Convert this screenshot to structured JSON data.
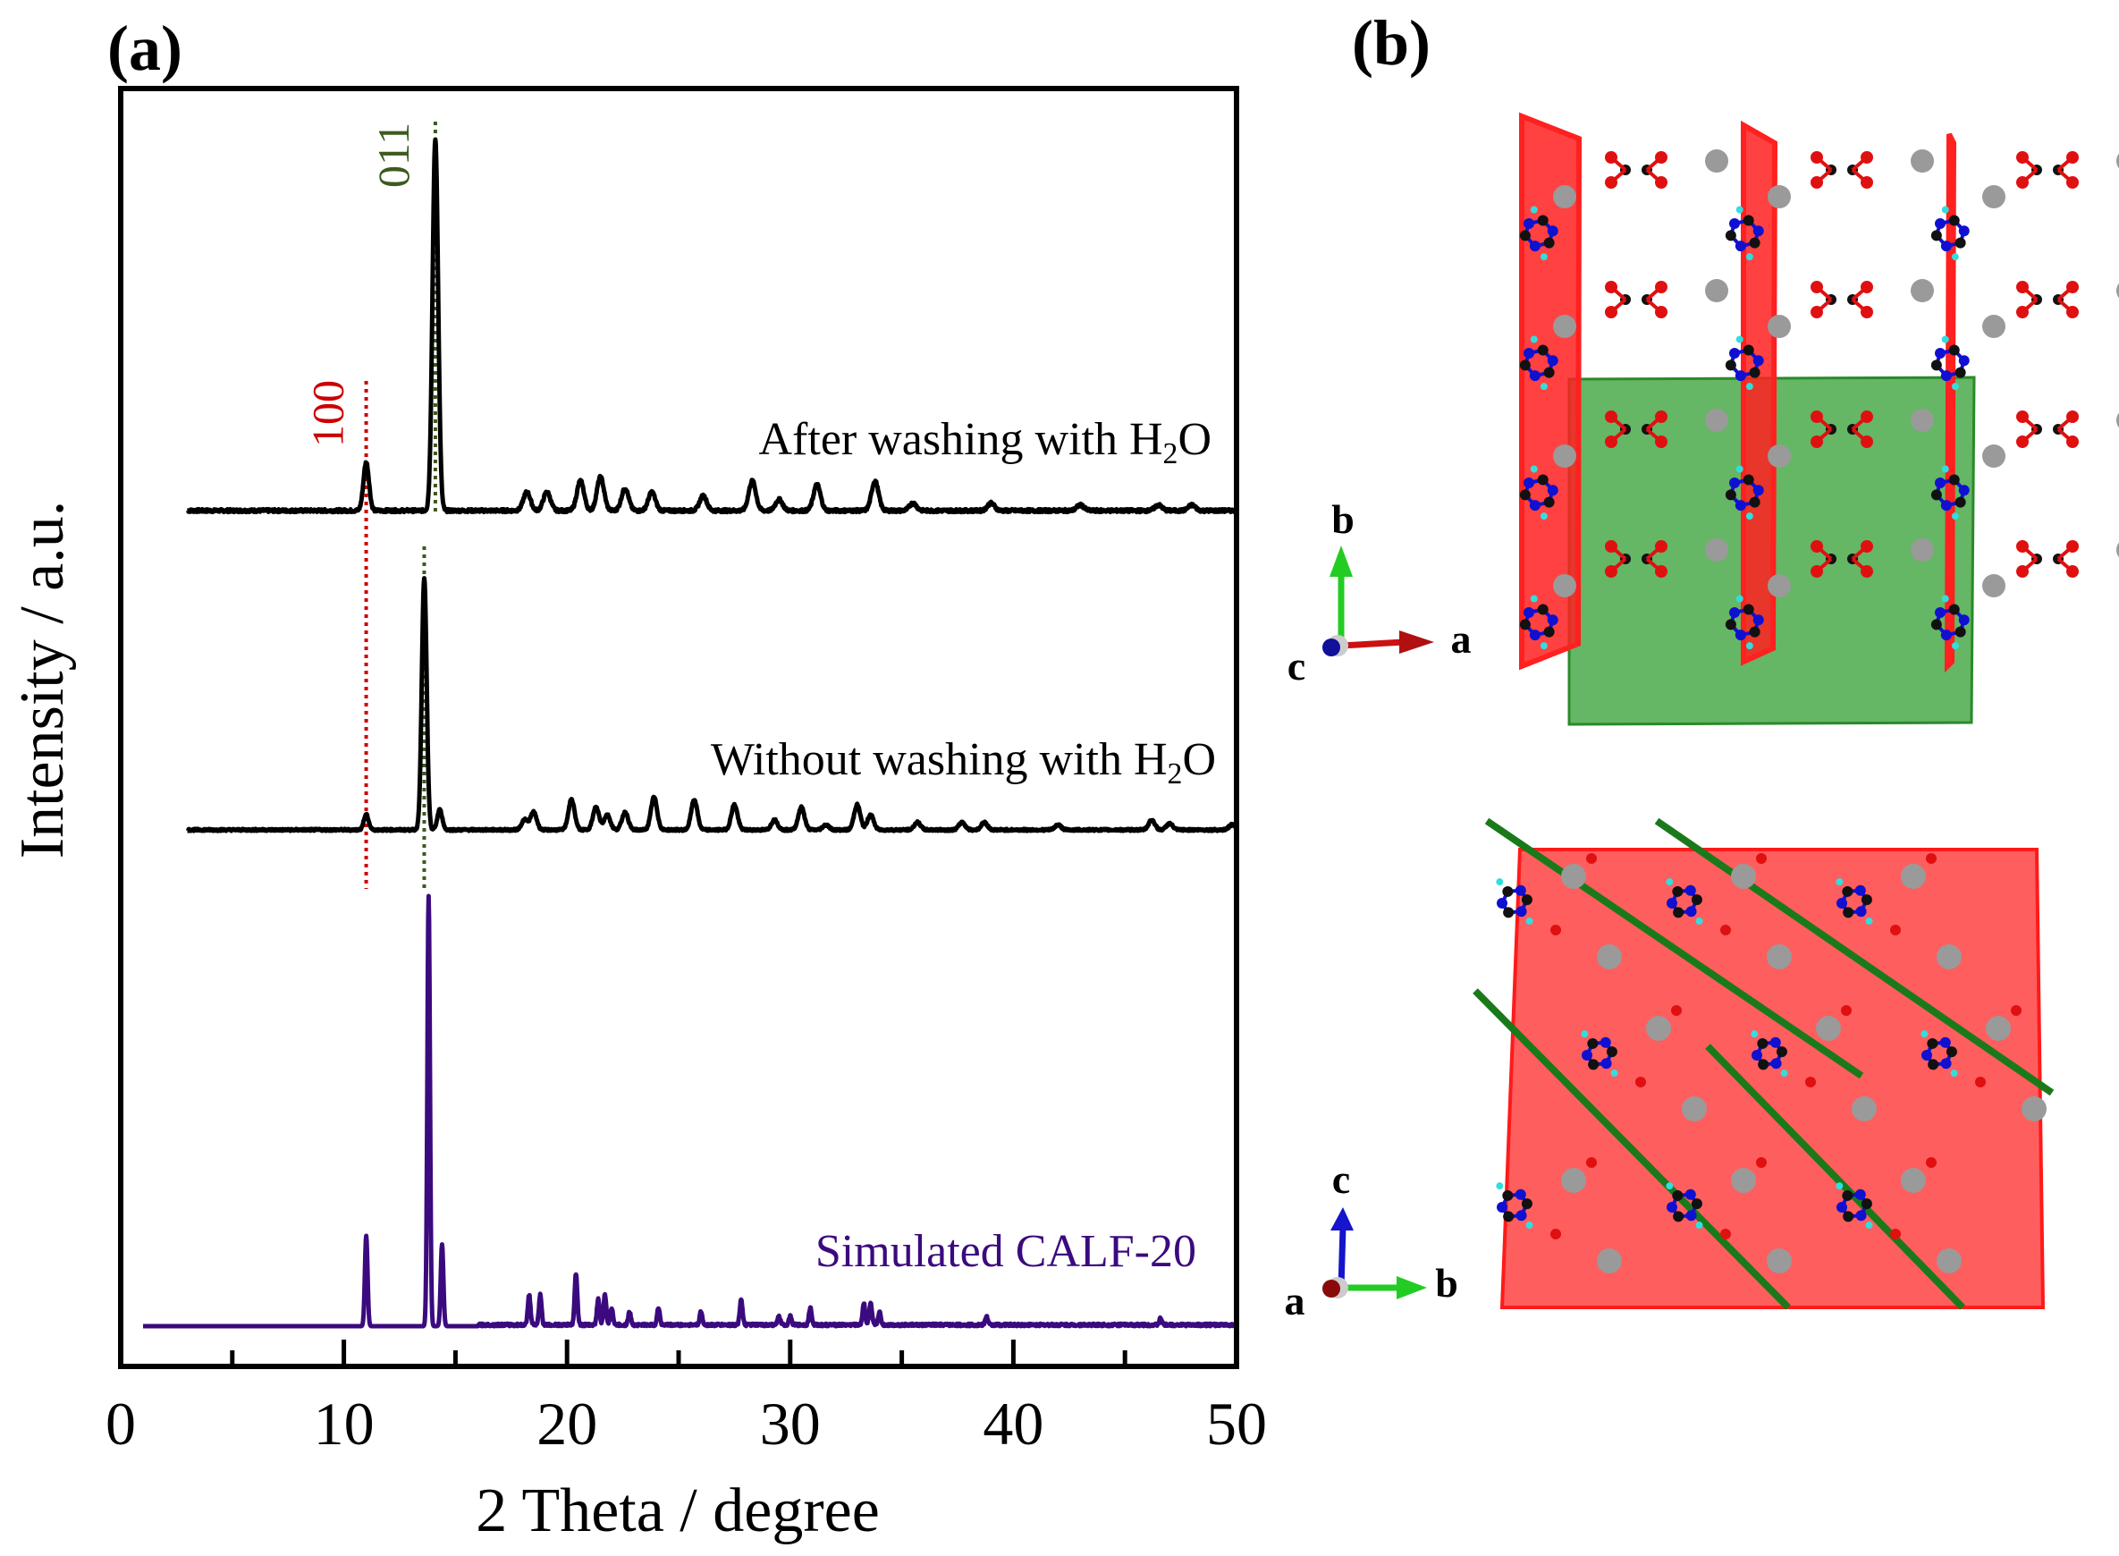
{
  "panel_labels": {
    "a": "(a)",
    "b": "(b)"
  },
  "chart_data": {
    "type": "line",
    "title": "",
    "xlabel": "2 Theta / degree",
    "ylabel": "Intensity / a.u.",
    "xlim": [
      0,
      50
    ],
    "xticks": [
      0,
      10,
      20,
      30,
      40,
      50
    ],
    "xticks_minor": [
      5,
      15,
      25,
      35,
      45
    ],
    "yticks": [],
    "grid": false,
    "legend": "none (inline labels at right of each trace)",
    "series": [
      {
        "name": "After washing with H2O",
        "label_main": "After washing with H",
        "label_sub": "2",
        "label_end": "O",
        "color": "#000000",
        "x_start": 3,
        "offset": 2.0,
        "peaks": [
          {
            "x": 11.0,
            "h": 0.13
          },
          {
            "x": 14.1,
            "h": 1.0
          },
          {
            "x": 18.2,
            "h": 0.05
          },
          {
            "x": 19.1,
            "h": 0.05
          },
          {
            "x": 20.6,
            "h": 0.08
          },
          {
            "x": 21.5,
            "h": 0.09
          },
          {
            "x": 22.6,
            "h": 0.06
          },
          {
            "x": 23.8,
            "h": 0.05
          },
          {
            "x": 26.1,
            "h": 0.04
          },
          {
            "x": 28.3,
            "h": 0.08
          },
          {
            "x": 29.5,
            "h": 0.03
          },
          {
            "x": 31.2,
            "h": 0.07
          },
          {
            "x": 33.8,
            "h": 0.08
          },
          {
            "x": 35.5,
            "h": 0.02
          },
          {
            "x": 39.0,
            "h": 0.02
          },
          {
            "x": 43.0,
            "h": 0.015
          },
          {
            "x": 46.5,
            "h": 0.015
          },
          {
            "x": 48.0,
            "h": 0.015
          }
        ]
      },
      {
        "name": "Without washing with H2O",
        "label_main": "Without washing with H",
        "label_sub": "2",
        "label_end": "O",
        "color": "#000000",
        "x_start": 3,
        "offset": 1.0,
        "peaks": [
          {
            "x": 11.0,
            "h": 0.06
          },
          {
            "x": 13.6,
            "h": 1.0
          },
          {
            "x": 14.3,
            "h": 0.08
          },
          {
            "x": 18.1,
            "h": 0.04
          },
          {
            "x": 18.5,
            "h": 0.07
          },
          {
            "x": 20.2,
            "h": 0.12
          },
          {
            "x": 21.3,
            "h": 0.09
          },
          {
            "x": 21.8,
            "h": 0.06
          },
          {
            "x": 22.6,
            "h": 0.07
          },
          {
            "x": 23.9,
            "h": 0.13
          },
          {
            "x": 25.7,
            "h": 0.12
          },
          {
            "x": 27.5,
            "h": 0.1
          },
          {
            "x": 29.3,
            "h": 0.04
          },
          {
            "x": 30.5,
            "h": 0.09
          },
          {
            "x": 31.6,
            "h": 0.02
          },
          {
            "x": 33.0,
            "h": 0.1
          },
          {
            "x": 33.6,
            "h": 0.06
          },
          {
            "x": 35.7,
            "h": 0.03
          },
          {
            "x": 37.7,
            "h": 0.03
          },
          {
            "x": 38.7,
            "h": 0.03
          },
          {
            "x": 42.0,
            "h": 0.02
          },
          {
            "x": 46.2,
            "h": 0.04
          },
          {
            "x": 47.0,
            "h": 0.025
          },
          {
            "x": 49.8,
            "h": 0.02
          }
        ]
      },
      {
        "name": "Simulated CALF-20",
        "label_main": "Simulated CALF-20",
        "label_sub": "",
        "label_end": "",
        "color": "#3b0a7e",
        "x_start": 1,
        "offset": 0.0,
        "peaks": [
          {
            "x": 11.0,
            "h": 0.21
          },
          {
            "x": 13.8,
            "h": 1.0
          },
          {
            "x": 14.4,
            "h": 0.19
          },
          {
            "x": 18.3,
            "h": 0.07
          },
          {
            "x": 18.8,
            "h": 0.07
          },
          {
            "x": 20.4,
            "h": 0.12
          },
          {
            "x": 21.4,
            "h": 0.06
          },
          {
            "x": 21.7,
            "h": 0.07
          },
          {
            "x": 22.0,
            "h": 0.04
          },
          {
            "x": 22.8,
            "h": 0.03
          },
          {
            "x": 24.1,
            "h": 0.04
          },
          {
            "x": 26.0,
            "h": 0.03
          },
          {
            "x": 27.8,
            "h": 0.06
          },
          {
            "x": 29.5,
            "h": 0.02
          },
          {
            "x": 30.0,
            "h": 0.02
          },
          {
            "x": 30.9,
            "h": 0.04
          },
          {
            "x": 33.3,
            "h": 0.05
          },
          {
            "x": 33.6,
            "h": 0.05
          },
          {
            "x": 34.0,
            "h": 0.03
          },
          {
            "x": 38.8,
            "h": 0.02
          },
          {
            "x": 46.6,
            "h": 0.015
          }
        ]
      }
    ],
    "annotations": [
      {
        "text": "100",
        "x": 11.0,
        "color": "#cc0000",
        "line": "dotted"
      },
      {
        "text": "011",
        "x": 14.1,
        "color": "#3d5a1e",
        "line": "dotted"
      }
    ]
  },
  "structure_panel": {
    "top_view": {
      "axes": {
        "up": "b",
        "right": "a",
        "out": "c"
      },
      "planes": [
        {
          "color": "#ff2b2b",
          "orientation": "vertical"
        },
        {
          "color": "#2e8b2e",
          "orientation": "horizontal"
        }
      ]
    },
    "bottom_view": {
      "axes": {
        "up": "c",
        "right": "b",
        "out": "a"
      },
      "planes": [
        {
          "color": "#ff2b2b",
          "orientation": "face-on"
        },
        {
          "color": "#1a7a1a",
          "orientation": "diagonal"
        }
      ]
    },
    "atom_colors": {
      "metal": "#9a9a9a",
      "oxygen": "#e01010",
      "nitrogen": "#1010d0",
      "carbon": "#111111",
      "hydrogen": "#33dddd"
    }
  }
}
